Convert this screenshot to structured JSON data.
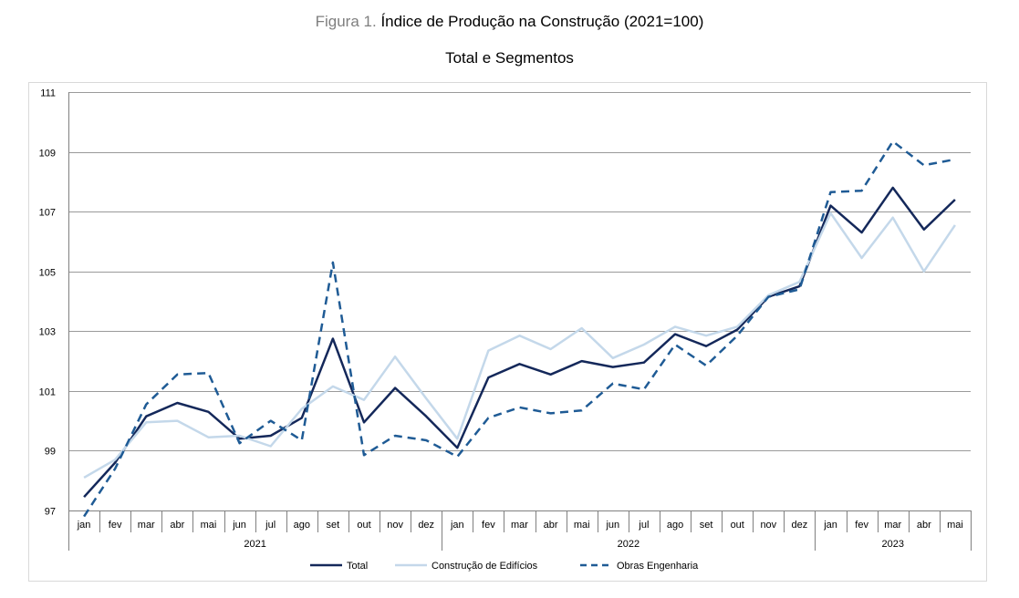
{
  "header": {
    "figure_prefix": "Figura 1.",
    "title": "Índice de Produção na Construção (2021=100)",
    "subtitle": "Total e Segmentos"
  },
  "chart_data": {
    "type": "line",
    "ylim": [
      97,
      111
    ],
    "yticks": [
      "97",
      "99",
      "101",
      "103",
      "105",
      "107",
      "109",
      "111"
    ],
    "grid": true,
    "legend_position": "bottom",
    "categories": [
      "jan",
      "fev",
      "mar",
      "abr",
      "mai",
      "jun",
      "jul",
      "ago",
      "set",
      "out",
      "nov",
      "dez",
      "jan",
      "fev",
      "mar",
      "abr",
      "mai",
      "jun",
      "jul",
      "ago",
      "set",
      "out",
      "nov",
      "dez",
      "jan",
      "fev",
      "mar",
      "abr",
      "mai"
    ],
    "years": [
      {
        "label": "2021",
        "count": 12
      },
      {
        "label": "2022",
        "count": 12
      },
      {
        "label": "2023",
        "count": 5
      }
    ],
    "series": [
      {
        "name": "Total",
        "color": "#14285a",
        "style": "solid",
        "values": [
          97.45,
          98.6,
          100.15,
          100.6,
          100.3,
          99.4,
          99.5,
          100.1,
          102.75,
          99.95,
          101.1,
          100.15,
          99.1,
          101.45,
          101.9,
          101.55,
          102.0,
          101.8,
          101.95,
          102.9,
          102.5,
          103.05,
          104.15,
          104.5,
          107.2,
          106.3,
          107.8,
          106.4,
          107.4
        ]
      },
      {
        "name": "Construção de Edifícios",
        "color": "#c4d8ea",
        "style": "solid",
        "values": [
          98.1,
          98.7,
          99.95,
          100.0,
          99.45,
          99.5,
          99.15,
          100.4,
          101.15,
          100.7,
          102.15,
          100.75,
          99.4,
          102.35,
          102.85,
          102.4,
          103.1,
          102.1,
          102.55,
          103.15,
          102.85,
          103.15,
          104.2,
          104.65,
          106.95,
          105.45,
          106.8,
          105.0,
          106.55
        ]
      },
      {
        "name": "Obras Engenharia",
        "color": "#1f5b95",
        "style": "dashed",
        "values": [
          96.8,
          98.4,
          100.55,
          101.55,
          101.6,
          99.25,
          100.0,
          99.35,
          105.3,
          98.85,
          99.5,
          99.35,
          98.8,
          100.1,
          100.45,
          100.25,
          100.35,
          101.25,
          101.05,
          102.55,
          101.85,
          102.85,
          104.15,
          104.4,
          107.65,
          107.7,
          109.35,
          108.55,
          108.75
        ]
      }
    ]
  }
}
